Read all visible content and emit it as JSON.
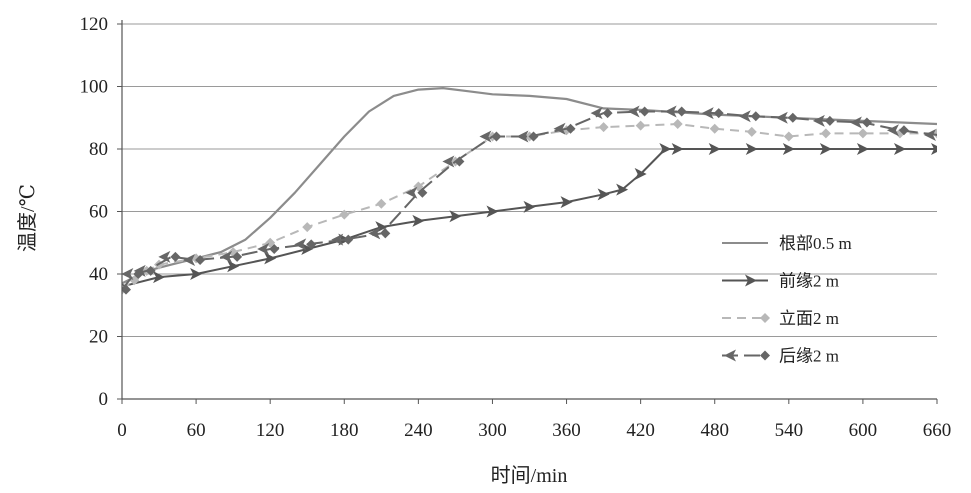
{
  "chart_data": {
    "type": "line",
    "title": "",
    "xlabel": "时间/min",
    "ylabel": "温度/℃",
    "xlim": [
      0,
      660
    ],
    "ylim": [
      0,
      120
    ],
    "x_ticks": [
      0,
      60,
      120,
      180,
      240,
      300,
      360,
      420,
      480,
      540,
      600,
      660
    ],
    "y_ticks": [
      0,
      20,
      40,
      60,
      80,
      100,
      120
    ],
    "grid": "horizontal",
    "legend_position": "right",
    "series": [
      {
        "name": "根部0.5 m",
        "color": "#8c8c8c",
        "style": "solid",
        "marker": "none",
        "x": [
          0,
          20,
          40,
          60,
          80,
          100,
          120,
          140,
          160,
          180,
          200,
          220,
          240,
          260,
          280,
          300,
          330,
          360,
          390,
          420,
          480,
          540,
          600,
          660
        ],
        "y": [
          37,
          41,
          43,
          45,
          47,
          51,
          58,
          66,
          75,
          84,
          92,
          97,
          99,
          99.5,
          98.5,
          97.5,
          97,
          96,
          93,
          92.5,
          91,
          90,
          89,
          88
        ]
      },
      {
        "name": "前缘2 m",
        "color": "#555555",
        "style": "solid",
        "marker": "arrow-right",
        "x": [
          0,
          30,
          60,
          90,
          120,
          150,
          180,
          210,
          240,
          270,
          300,
          330,
          360,
          390,
          405,
          420,
          440,
          450,
          480,
          510,
          540,
          570,
          600,
          630,
          660
        ],
        "y": [
          36,
          39,
          40,
          42.5,
          45,
          48,
          51,
          55,
          57,
          58.5,
          60,
          61.5,
          63,
          65.5,
          67,
          72,
          80,
          80,
          80,
          80,
          80,
          80,
          80,
          80,
          80
        ]
      },
      {
        "name": "立面2 m",
        "color": "#b8b8b8",
        "style": "dashed",
        "marker": "diamond",
        "x": [
          0,
          10,
          20,
          30,
          60,
          90,
          120,
          150,
          180,
          210,
          240,
          270,
          300,
          330,
          360,
          390,
          420,
          450,
          480,
          510,
          540,
          570,
          600,
          630,
          660
        ],
        "y": [
          35,
          38,
          41,
          43,
          45,
          47,
          50,
          55,
          59,
          62.5,
          68,
          76,
          84,
          84,
          86,
          87,
          87.5,
          88,
          86.5,
          85.5,
          84,
          85,
          85,
          85,
          85
        ]
      },
      {
        "name": "后缘2 m",
        "color": "#666666",
        "style": "long-dash",
        "marker": "diamond-arrow-left",
        "x": [
          0,
          10,
          20,
          40,
          60,
          90,
          120,
          150,
          180,
          210,
          240,
          270,
          300,
          330,
          360,
          390,
          420,
          450,
          480,
          510,
          540,
          570,
          600,
          630,
          660
        ],
        "y": [
          35,
          40,
          41,
          45.5,
          44.5,
          45.5,
          48,
          49.5,
          51,
          53,
          66,
          76,
          84,
          84,
          86.5,
          91.5,
          92,
          92,
          91.5,
          90.5,
          90,
          89,
          88.5,
          86,
          84.5
        ]
      }
    ]
  }
}
